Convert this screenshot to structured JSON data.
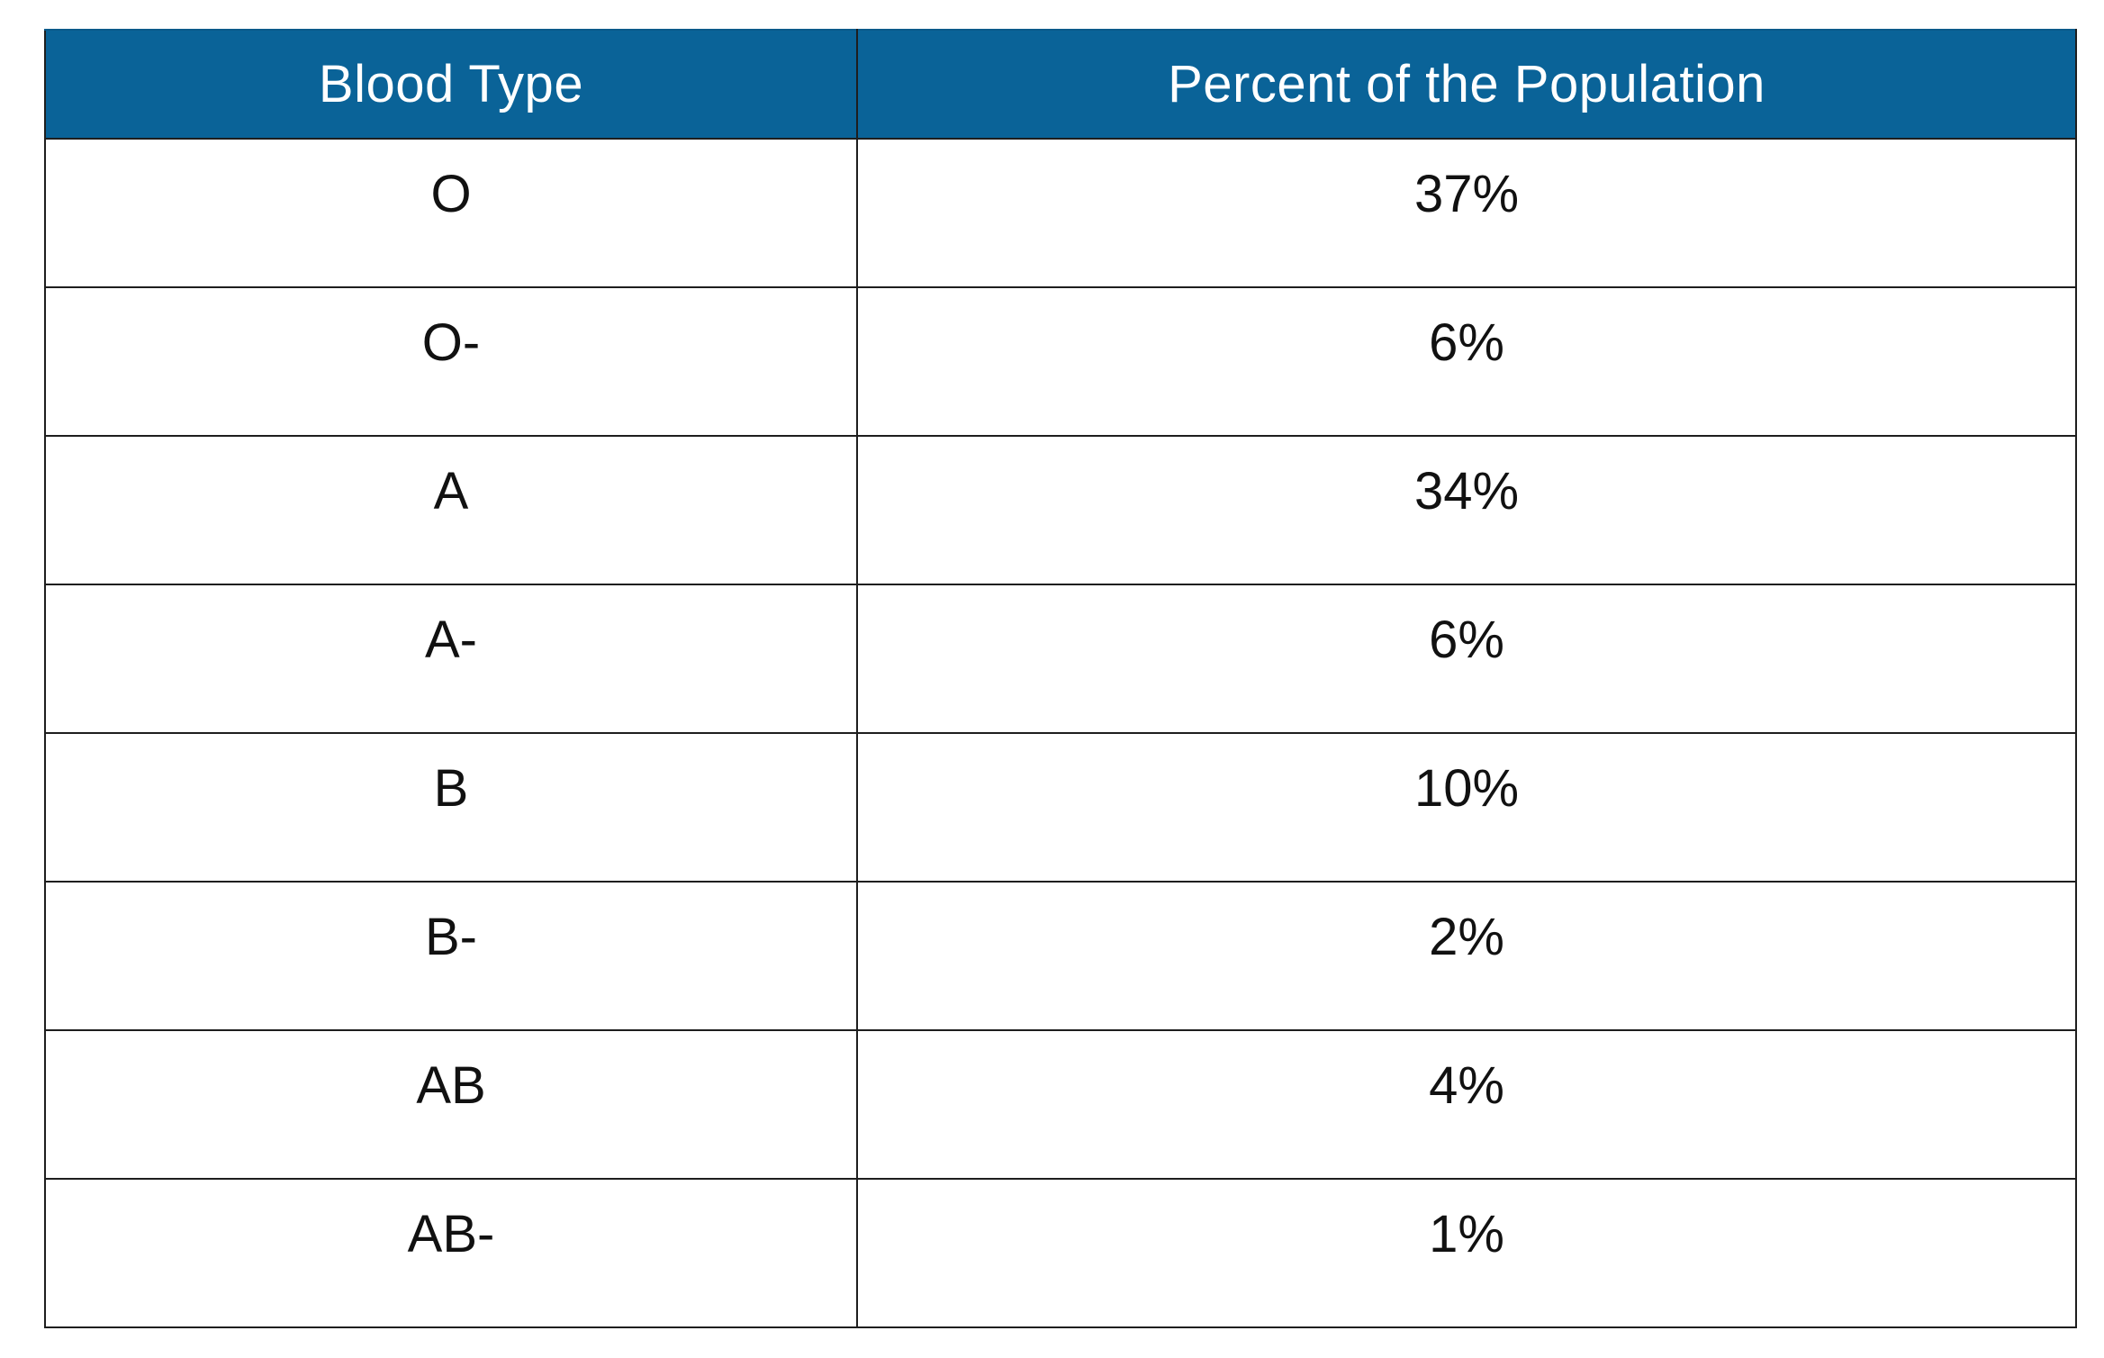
{
  "chart_data": {
    "type": "table",
    "columns": [
      "Blood Type",
      "Percent of the Population"
    ],
    "rows": [
      {
        "blood_type": "O",
        "percent": "37%"
      },
      {
        "blood_type": "O-",
        "percent": "6%"
      },
      {
        "blood_type": "A",
        "percent": "34%"
      },
      {
        "blood_type": "A-",
        "percent": "6%"
      },
      {
        "blood_type": "B",
        "percent": "10%"
      },
      {
        "blood_type": "B-",
        "percent": "2%"
      },
      {
        "blood_type": "AB",
        "percent": "4%"
      },
      {
        "blood_type": "AB-",
        "percent": "1%"
      }
    ],
    "values": [
      37,
      6,
      34,
      6,
      10,
      2,
      4,
      1
    ]
  },
  "colors": {
    "header_background": "#0a6398",
    "header_text": "#ffffff",
    "border": "#1e1e1e"
  }
}
